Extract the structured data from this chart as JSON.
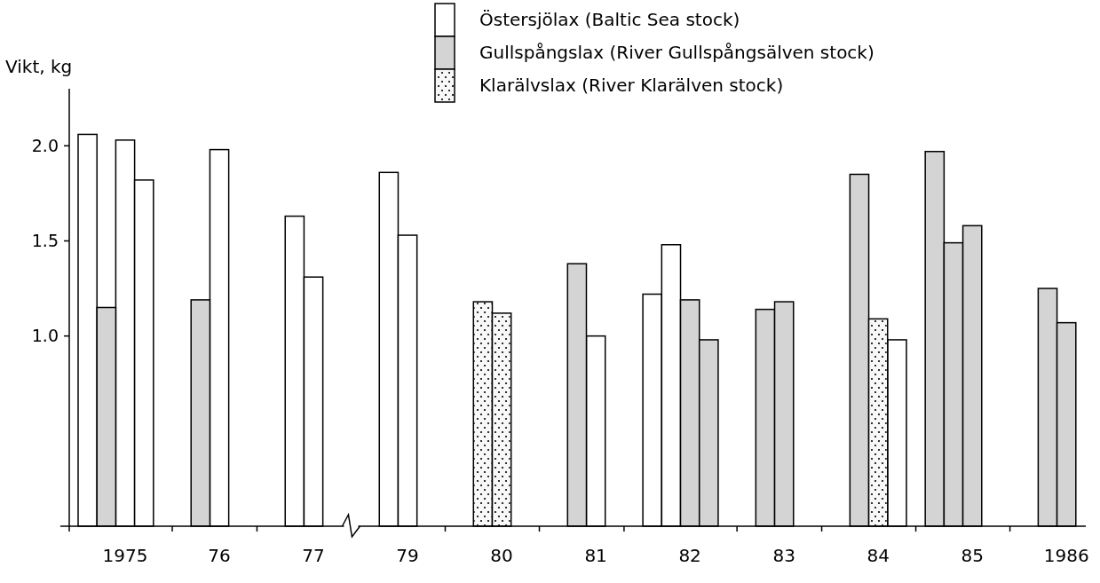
{
  "chart_data": {
    "type": "bar",
    "ylabel": "Vikt, kg",
    "categories": [
      null,
      null,
      "1975",
      null,
      null,
      null,
      null,
      "76",
      null,
      null,
      null,
      null,
      "77",
      null,
      null,
      null,
      null,
      "79",
      null,
      null,
      null,
      null,
      "80",
      null,
      null,
      null,
      null,
      "81",
      null,
      null,
      null,
      null,
      "82",
      null,
      null,
      null,
      null,
      "83",
      null,
      null,
      null,
      null,
      "84",
      null,
      null,
      null,
      null,
      "85",
      null,
      null,
      null,
      null,
      "1986",
      null
    ],
    "series": [
      {
        "name": "Östersjölax (Baltic Sea stock)",
        "color": "#ffffff",
        "values": [
          2.06,
          null,
          2.03,
          1.82,
          null,
          null,
          null,
          1.98,
          null,
          null,
          null,
          1.63,
          1.31,
          null,
          null,
          null,
          1.86,
          1.53,
          null,
          null,
          null,
          null,
          null,
          null,
          null,
          null,
          null,
          1.0,
          null,
          null,
          1.22,
          1.48,
          null,
          null,
          null,
          null,
          null,
          null,
          null,
          null,
          null,
          null,
          null,
          0.98,
          null,
          null,
          null,
          null,
          null,
          null,
          null,
          null,
          null,
          null
        ]
      },
      {
        "name": "Gullspångslax (River Gullspångsälven stock)",
        "color": "#d4d4d4",
        "values": [
          null,
          1.15,
          null,
          null,
          null,
          null,
          1.19,
          null,
          null,
          null,
          null,
          null,
          null,
          null,
          null,
          null,
          null,
          null,
          null,
          null,
          null,
          null,
          null,
          null,
          null,
          null,
          1.38,
          null,
          null,
          null,
          null,
          null,
          1.19,
          0.98,
          null,
          null,
          1.14,
          1.18,
          null,
          null,
          null,
          1.85,
          null,
          null,
          null,
          1.97,
          1.49,
          1.58,
          null,
          null,
          null,
          1.25,
          1.07,
          null
        ]
      },
      {
        "name": "Klarälvslax (River Klarälven stock)",
        "color": "#f8f8f8",
        "values": [
          null,
          null,
          null,
          null,
          null,
          null,
          null,
          null,
          null,
          null,
          null,
          null,
          null,
          null,
          null,
          null,
          null,
          null,
          null,
          null,
          null,
          1.18,
          1.12,
          null,
          null,
          null,
          null,
          null,
          null,
          null,
          null,
          null,
          null,
          null,
          null,
          null,
          null,
          null,
          null,
          null,
          null,
          null,
          1.09,
          null,
          null,
          null,
          null,
          null,
          null,
          null,
          null,
          null,
          null,
          null
        ]
      }
    ],
    "ylim": [
      0,
      2.3
    ],
    "yticks": [
      {
        "value": 1,
        "label": "1.0"
      },
      {
        "value": 1.5,
        "label": "1.5"
      },
      {
        "value": 2,
        "label": "2.0"
      }
    ],
    "grid": false,
    "legend": "top"
  }
}
